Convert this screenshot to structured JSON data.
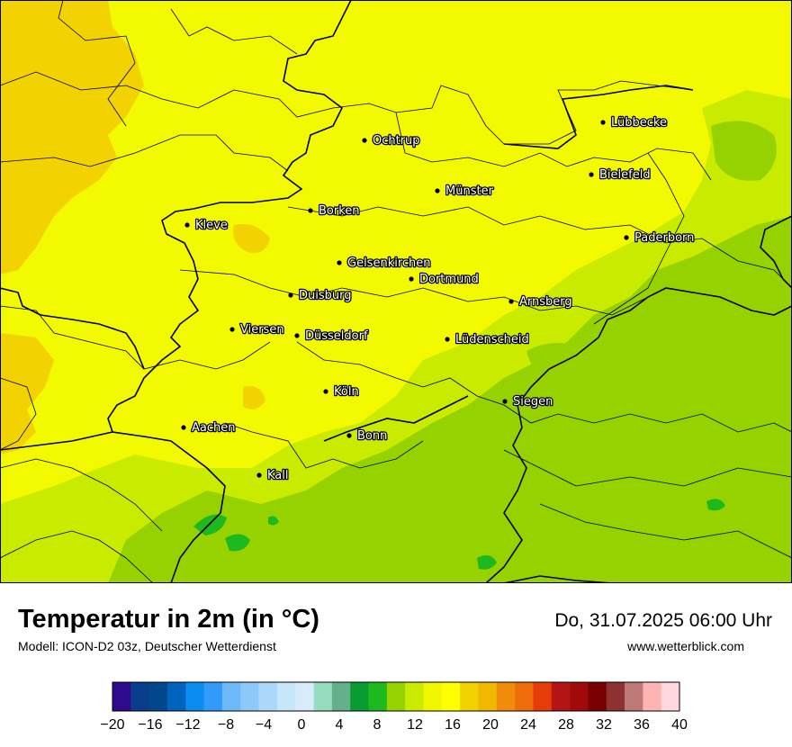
{
  "title": "Temperatur in 2m (in °C)",
  "model": "Modell: ICON-D2 03z, Deutscher Wetterdienst",
  "valid_time": "Do, 31.07.2025 06:00 Uhr",
  "website": "www.wetterblick.com",
  "cities": [
    {
      "name": "Lübbecke"
    },
    {
      "name": "Ochtrup"
    },
    {
      "name": "Bielefeld"
    },
    {
      "name": "Münster"
    },
    {
      "name": "Borken"
    },
    {
      "name": "Kleve"
    },
    {
      "name": "Paderborn"
    },
    {
      "name": "Gelsenkirchen"
    },
    {
      "name": "Dortmund"
    },
    {
      "name": "Duisburg"
    },
    {
      "name": "Arnsberg"
    },
    {
      "name": "Viersen"
    },
    {
      "name": "Düsseldorf"
    },
    {
      "name": "Lüdenscheid"
    },
    {
      "name": "Köln"
    },
    {
      "name": "Siegen"
    },
    {
      "name": "Aachen"
    },
    {
      "name": "Bonn"
    },
    {
      "name": "Kall"
    }
  ],
  "scale": {
    "unit": "°C",
    "ticks": [
      "−20",
      "−16",
      "−12",
      "−8",
      "−4",
      "0",
      "4",
      "8",
      "12",
      "16",
      "20",
      "24",
      "28",
      "32",
      "36",
      "40"
    ],
    "colors": [
      "#2e0a8c",
      "#0a3c8c",
      "#00468c",
      "#0064be",
      "#0a8cf0",
      "#329bfa",
      "#6eb9fa",
      "#8cc8fa",
      "#aad7fa",
      "#c8e6fa",
      "#d7ebfa",
      "#96dcbe",
      "#64af8c",
      "#0a9b32",
      "#1eb91e",
      "#96d200",
      "#c8eb00",
      "#f0f500",
      "#ffff00",
      "#f0d200",
      "#f0b900",
      "#f08c0a",
      "#f06e0a",
      "#e63c0a",
      "#b41414",
      "#a00a0a",
      "#780000",
      "#8c3232",
      "#be7878",
      "#ffb4b4",
      "#ffd7dc"
    ]
  },
  "field_colors": {
    "warm": "#f3fa00",
    "orange": "#f2d200",
    "light_green": "#c8eb00",
    "green": "#96d200",
    "dark_green": "#1eb91e"
  }
}
